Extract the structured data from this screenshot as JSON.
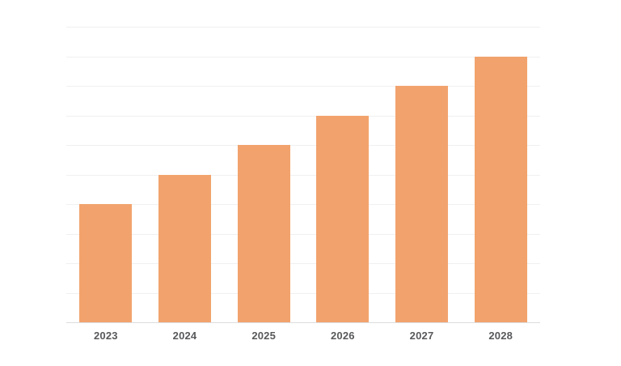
{
  "chart_data": {
    "type": "bar",
    "title": "",
    "xlabel": "",
    "ylabel": "",
    "categories": [
      "2023",
      "2024",
      "2025",
      "2026",
      "2027",
      "2028"
    ],
    "values": [
      4,
      5,
      6,
      7,
      8,
      9
    ],
    "ylim": [
      0,
      10
    ],
    "grid": "horizontal",
    "gridline_divisions": 10,
    "y_tick_labels": "none",
    "legend_position": "none",
    "colors": {
      "bar": "#f2a36d",
      "gridline": "#f0f0f1",
      "axis_line": "#dcdcde",
      "tick_label": "#58595b",
      "background": "#ffffff"
    }
  }
}
